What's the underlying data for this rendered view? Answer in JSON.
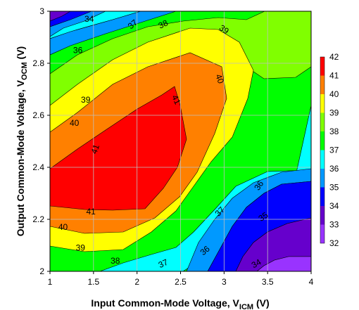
{
  "chart_data": {
    "type": "heatmap",
    "subtype": "filled-contour",
    "xlabel": "Input Common-Mode Voltage, V",
    "xlabel_sub": "ICM",
    "xlabel_unit": " (V)",
    "ylabel": "Output Common-Mode Voltage, V",
    "ylabel_sub": "OCM",
    "ylabel_unit": " (V)",
    "xlim": [
      1,
      4
    ],
    "ylim": [
      2,
      3
    ],
    "x_ticks": [
      "1",
      "1.5",
      "2",
      "2.5",
      "3",
      "3.5",
      "4"
    ],
    "y_ticks": [
      "2",
      "2.2",
      "2.4",
      "2.6",
      "2.8",
      "3"
    ],
    "grid": true,
    "legend_placement": "right",
    "levels": [
      "32",
      "33",
      "34",
      "35",
      "36",
      "37",
      "38",
      "39",
      "40",
      "41",
      "42"
    ],
    "level_colors": {
      "32": "#ff33ff",
      "33": "#9933ff",
      "34": "#6600cc",
      "35": "#0000ff",
      "36": "#0099ff",
      "37": "#00ffff",
      "38": "#00ff00",
      "39": "#80ff00",
      "40": "#ffff00",
      "41": "#ff8000",
      "42": "#ff0000"
    },
    "contour_labels": [
      {
        "text": "34",
        "x": 1.45,
        "y": 2.97,
        "rotate": 0
      },
      {
        "text": "37",
        "x": 1.95,
        "y": 2.95,
        "rotate": -40
      },
      {
        "text": "38",
        "x": 2.3,
        "y": 2.95,
        "rotate": -25
      },
      {
        "text": "39",
        "x": 3.0,
        "y": 2.93,
        "rotate": 35
      },
      {
        "text": "36",
        "x": 1.32,
        "y": 2.85,
        "rotate": 0
      },
      {
        "text": "40",
        "x": 2.95,
        "y": 2.74,
        "rotate": 70
      },
      {
        "text": "39",
        "x": 1.41,
        "y": 2.66,
        "rotate": 0
      },
      {
        "text": "41",
        "x": 2.45,
        "y": 2.66,
        "rotate": 65
      },
      {
        "text": "40",
        "x": 1.28,
        "y": 2.57,
        "rotate": 0
      },
      {
        "text": "41",
        "x": 1.52,
        "y": 2.47,
        "rotate": -70
      },
      {
        "text": "41",
        "x": 1.47,
        "y": 2.23,
        "rotate": 0
      },
      {
        "text": "40",
        "x": 1.15,
        "y": 2.17,
        "rotate": 0
      },
      {
        "text": "39",
        "x": 1.35,
        "y": 2.09,
        "rotate": 0
      },
      {
        "text": "38",
        "x": 1.75,
        "y": 2.04,
        "rotate": 0
      },
      {
        "text": "37",
        "x": 2.3,
        "y": 2.03,
        "rotate": -25
      },
      {
        "text": "37",
        "x": 2.95,
        "y": 2.23,
        "rotate": -45
      },
      {
        "text": "36",
        "x": 2.78,
        "y": 2.08,
        "rotate": -40
      },
      {
        "text": "36",
        "x": 3.4,
        "y": 2.33,
        "rotate": -55
      },
      {
        "text": "35",
        "x": 3.45,
        "y": 2.21,
        "rotate": -35
      },
      {
        "text": "34",
        "x": 3.37,
        "y": 2.03,
        "rotate": -30
      }
    ]
  }
}
